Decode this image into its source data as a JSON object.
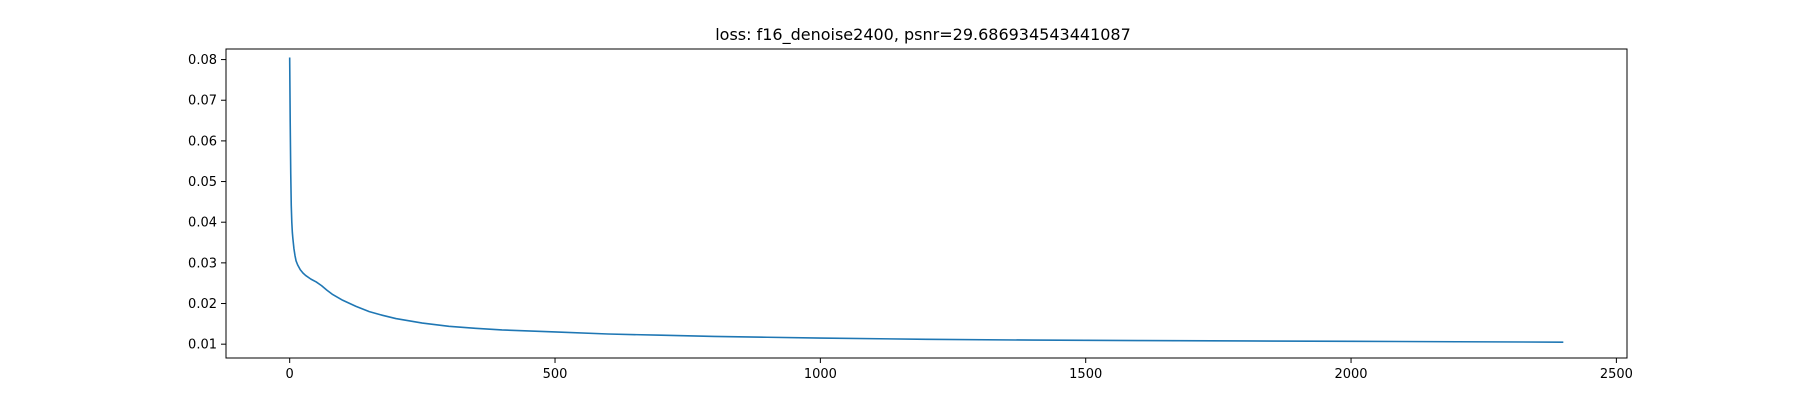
{
  "chart_data": {
    "type": "line",
    "title": "loss: f16_denoise2400, psnr=29.686934543441087",
    "xlabel": "",
    "ylabel": "",
    "xlim": [
      -120,
      2520
    ],
    "ylim": [
      0.0066,
      0.0826
    ],
    "x_ticks": [
      0,
      500,
      1000,
      1500,
      2000,
      2500
    ],
    "y_ticks": [
      0.01,
      0.02,
      0.03,
      0.04,
      0.05,
      0.06,
      0.07,
      0.08
    ],
    "grid": false,
    "legend": false,
    "series": [
      {
        "color": "#1f77b4",
        "x": [
          0,
          1,
          2,
          3,
          4,
          5,
          6,
          8,
          10,
          12,
          15,
          20,
          25,
          30,
          40,
          50,
          60,
          70,
          80,
          100,
          125,
          150,
          175,
          200,
          250,
          300,
          350,
          400,
          500,
          600,
          700,
          800,
          900,
          1000,
          1200,
          1400,
          1600,
          1800,
          2000,
          2200,
          2400
        ],
        "y": [
          0.0805,
          0.0645,
          0.052,
          0.044,
          0.04,
          0.0375,
          0.036,
          0.0335,
          0.0318,
          0.0305,
          0.0295,
          0.0283,
          0.0275,
          0.0269,
          0.026,
          0.0253,
          0.0244,
          0.0233,
          0.0223,
          0.0208,
          0.0193,
          0.018,
          0.0171,
          0.0163,
          0.0152,
          0.0144,
          0.0139,
          0.0135,
          0.013,
          0.0125,
          0.0122,
          0.0119,
          0.0117,
          0.0115,
          0.0112,
          0.011,
          0.0109,
          0.0108,
          0.0107,
          0.0106,
          0.0105
        ]
      }
    ]
  }
}
